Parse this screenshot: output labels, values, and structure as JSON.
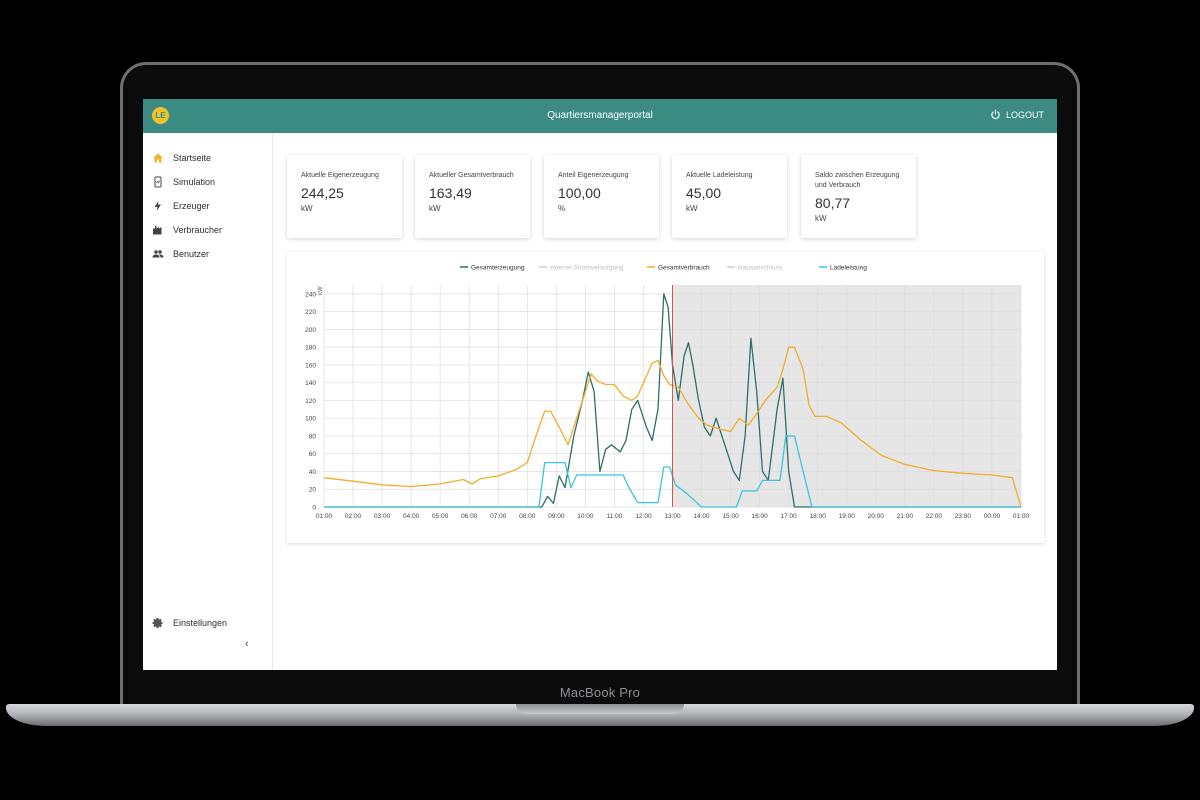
{
  "device": {
    "label": "MacBook Pro"
  },
  "header": {
    "title": "Quartiersmanagerportal",
    "logo_text": "LE",
    "logout_label": "LOGOUT"
  },
  "sidebar": {
    "items": [
      {
        "label": "Startseite",
        "icon": "home-icon",
        "active": true
      },
      {
        "label": "Simulation",
        "icon": "simulation-icon"
      },
      {
        "label": "Erzeuger",
        "icon": "lightning-icon"
      },
      {
        "label": "Verbraucher",
        "icon": "factory-icon"
      },
      {
        "label": "Benutzer",
        "icon": "users-icon"
      }
    ],
    "settings_label": "Einstellungen",
    "collapse_label": "‹"
  },
  "cards": [
    {
      "label": "Aktuelle Eigenerzeugung",
      "value": "244,25",
      "unit": "kW"
    },
    {
      "label": "Aktueller Gesamtverbrauch",
      "value": "163,49",
      "unit": "kW"
    },
    {
      "label": "Anteil Eigenerzeugung",
      "value": "100,00",
      "unit": "%"
    },
    {
      "label": "Aktuelle Ladeleistung",
      "value": "45,00",
      "unit": "kW"
    },
    {
      "label": "Saldo zwischen Erzeugung und Verbrauch",
      "value": "80,77",
      "unit": "kW"
    }
  ],
  "colors": {
    "accent": "#3b8b83",
    "logo": "#f2c12e",
    "active_icon": "#f0b429",
    "gesamterzeugung": "#2e6e68",
    "gesamtverbrauch": "#f0ad2e",
    "ladeleistung": "#3cc4df",
    "disabled": "#cccccc",
    "now_line": "#d9534f",
    "future_shade": "#e6e6e6"
  },
  "chart_data": {
    "type": "line",
    "ylabel": "kW",
    "ylim": [
      0,
      250
    ],
    "yticks": [
      0,
      20,
      40,
      60,
      80,
      100,
      120,
      140,
      160,
      180,
      200,
      220,
      240
    ],
    "x": [
      1,
      2,
      3,
      4,
      5,
      6,
      7,
      8,
      9,
      10,
      11,
      12,
      13,
      14,
      15,
      16,
      17,
      18,
      19,
      20,
      21,
      22,
      23,
      24,
      25
    ],
    "xticks": [
      "01:00",
      "02:00",
      "03:00",
      "04:00",
      "05:00",
      "06:00",
      "07:00",
      "08:00",
      "09:00",
      "10:00",
      "11:00",
      "12:00",
      "13:00",
      "14:00",
      "15:00",
      "16:00",
      "17:00",
      "18:00",
      "19:00",
      "20:00",
      "21:00",
      "22:00",
      "23:00",
      "00:00",
      "01:00"
    ],
    "now_marker": "13:00",
    "future_shaded": true,
    "legend_position": "top",
    "grid": true,
    "series": [
      {
        "name": "Gesamterzeugung",
        "color": "#2e6e68",
        "enabled": true,
        "points": [
          [
            1,
            0
          ],
          [
            8.5,
            0
          ],
          [
            8.7,
            12
          ],
          [
            8.9,
            4
          ],
          [
            9.1,
            35
          ],
          [
            9.3,
            22
          ],
          [
            9.6,
            80
          ],
          [
            9.9,
            120
          ],
          [
            10.1,
            152
          ],
          [
            10.3,
            130
          ],
          [
            10.5,
            40
          ],
          [
            10.7,
            65
          ],
          [
            10.9,
            70
          ],
          [
            11.2,
            62
          ],
          [
            11.4,
            75
          ],
          [
            11.6,
            110
          ],
          [
            11.8,
            120
          ],
          [
            12.1,
            90
          ],
          [
            12.3,
            75
          ],
          [
            12.5,
            110
          ],
          [
            12.7,
            240
          ],
          [
            12.85,
            225
          ],
          [
            13.0,
            160
          ],
          [
            13.2,
            120
          ],
          [
            13.4,
            170
          ],
          [
            13.55,
            185
          ],
          [
            13.7,
            160
          ],
          [
            13.9,
            120
          ],
          [
            14.1,
            90
          ],
          [
            14.3,
            80
          ],
          [
            14.5,
            100
          ],
          [
            14.8,
            70
          ],
          [
            15.1,
            40
          ],
          [
            15.3,
            30
          ],
          [
            15.5,
            80
          ],
          [
            15.7,
            190
          ],
          [
            15.9,
            130
          ],
          [
            16.1,
            40
          ],
          [
            16.3,
            30
          ],
          [
            16.6,
            110
          ],
          [
            16.8,
            145
          ],
          [
            17.0,
            40
          ],
          [
            17.2,
            0
          ],
          [
            25,
            0
          ]
        ]
      },
      {
        "name": "externe Stromversorgung",
        "color": "#cccccc",
        "enabled": false,
        "points": []
      },
      {
        "name": "Gesamtverbrauch",
        "color": "#f0ad2e",
        "enabled": true,
        "points": [
          [
            1,
            33
          ],
          [
            2,
            29
          ],
          [
            3,
            25
          ],
          [
            4,
            23
          ],
          [
            5,
            26
          ],
          [
            5.8,
            31
          ],
          [
            6.1,
            26
          ],
          [
            6.4,
            32
          ],
          [
            7,
            35
          ],
          [
            7.6,
            42
          ],
          [
            8.0,
            50
          ],
          [
            8.3,
            80
          ],
          [
            8.6,
            108
          ],
          [
            8.8,
            108
          ],
          [
            9.1,
            90
          ],
          [
            9.4,
            70
          ],
          [
            9.6,
            90
          ],
          [
            9.9,
            120
          ],
          [
            10.2,
            150
          ],
          [
            10.4,
            142
          ],
          [
            10.7,
            138
          ],
          [
            11.0,
            138
          ],
          [
            11.3,
            125
          ],
          [
            11.6,
            120
          ],
          [
            11.8,
            125
          ],
          [
            12.0,
            140
          ],
          [
            12.3,
            162
          ],
          [
            12.5,
            165
          ],
          [
            12.7,
            148
          ],
          [
            12.9,
            138
          ],
          [
            13.2,
            135
          ],
          [
            13.5,
            118
          ],
          [
            13.9,
            100
          ],
          [
            14.2,
            92
          ],
          [
            14.6,
            88
          ],
          [
            15.0,
            85
          ],
          [
            15.3,
            100
          ],
          [
            15.6,
            92
          ],
          [
            15.9,
            105
          ],
          [
            16.2,
            120
          ],
          [
            16.6,
            135
          ],
          [
            16.8,
            155
          ],
          [
            17.0,
            180
          ],
          [
            17.2,
            180
          ],
          [
            17.5,
            155
          ],
          [
            17.7,
            115
          ],
          [
            17.9,
            102
          ],
          [
            18.3,
            102
          ],
          [
            18.8,
            95
          ],
          [
            19.5,
            75
          ],
          [
            20.2,
            58
          ],
          [
            21.0,
            48
          ],
          [
            22.0,
            41
          ],
          [
            23.0,
            38
          ],
          [
            24.0,
            36
          ],
          [
            24.7,
            33
          ],
          [
            25.0,
            0
          ]
        ]
      },
      {
        "name": "Hausanschluss",
        "color": "#cccccc",
        "enabled": false,
        "points": []
      },
      {
        "name": "Ladeleistung",
        "color": "#3cc4df",
        "enabled": true,
        "points": [
          [
            1,
            0
          ],
          [
            8.4,
            0
          ],
          [
            8.6,
            50
          ],
          [
            9.3,
            50
          ],
          [
            9.5,
            22
          ],
          [
            9.7,
            36
          ],
          [
            11.3,
            36
          ],
          [
            11.5,
            22
          ],
          [
            11.8,
            5
          ],
          [
            12.5,
            5
          ],
          [
            12.7,
            45
          ],
          [
            12.9,
            45
          ],
          [
            13.1,
            25
          ],
          [
            13.5,
            15
          ],
          [
            14.0,
            0
          ],
          [
            15.2,
            0
          ],
          [
            15.4,
            18
          ],
          [
            15.9,
            18
          ],
          [
            16.1,
            30
          ],
          [
            16.7,
            30
          ],
          [
            16.9,
            80
          ],
          [
            17.2,
            80
          ],
          [
            17.5,
            40
          ],
          [
            17.8,
            0
          ],
          [
            25,
            0
          ]
        ]
      }
    ]
  }
}
